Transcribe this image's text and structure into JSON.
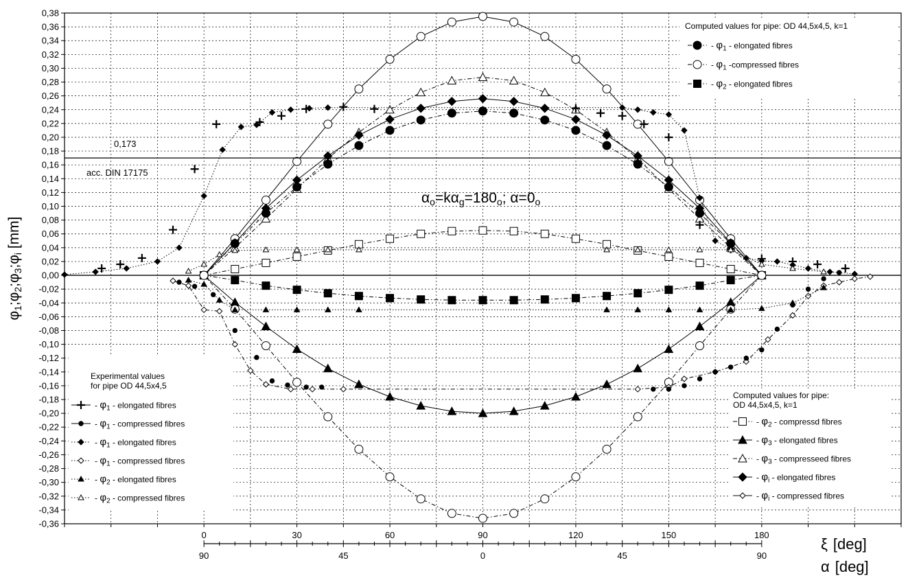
{
  "chart_data": {
    "type": "line",
    "ylabel_parts": [
      "φ",
      "1",
      ";φ",
      "2",
      ";φ",
      "3",
      ";φ",
      "i",
      " [mm]"
    ],
    "ylim": [
      -0.36,
      0.38
    ],
    "yticks": [
      "0,38",
      "0,36",
      "0,34",
      "0,32",
      "0,30",
      "0,28",
      "0,26",
      "0,24",
      "0,22",
      "0,20",
      "0,18",
      "0,16",
      "0,14",
      "0,12",
      "0,10",
      "0,08",
      "0,06",
      "0,04",
      "0,02",
      "0,00",
      "-0,02",
      "-0,04",
      "-0,06",
      "-0,08",
      "-0,10",
      "-0,12",
      "-0,14",
      "-0,16",
      "-0,18",
      "-0,20",
      "-0,22",
      "-0,24",
      "-0,26",
      "-0,28",
      "-0,30",
      "-0,32",
      "-0,34",
      "-0,36"
    ],
    "xlim": [
      -45,
      225
    ],
    "xi_axis": {
      "label_symbol": "ξ",
      "label_unit": "[deg]",
      "ticks": [
        0,
        30,
        60,
        90,
        120,
        150,
        180
      ]
    },
    "alpha_axis": {
      "label_symbol": "α",
      "label_unit": "[deg]",
      "ticks": [
        {
          "xi": 0,
          "label": "90"
        },
        {
          "xi": 45,
          "label": "45"
        },
        {
          "xi": 90,
          "label": "0"
        },
        {
          "xi": 135,
          "label": "45"
        },
        {
          "xi": 180,
          "label": "90"
        }
      ]
    },
    "reference_line": {
      "y": 0.17,
      "label_value": "0,173",
      "label_text": "acc. DIN 17175"
    },
    "annotation_parts": [
      "α",
      "o",
      "=kα",
      "g",
      "=180",
      "o",
      "; α=0",
      "o"
    ],
    "legend_top": {
      "title": "Computed values for pipe: OD 44,5x4,5, k=1",
      "items": [
        {
          "symbol": "φ",
          "sub": "1",
          "text": " - elongated fibres"
        },
        {
          "symbol": "φ",
          "sub": "1",
          "text": " -compressed fibres"
        },
        {
          "symbol": "φ",
          "sub": "2",
          "text": " - elongated fibres"
        }
      ]
    },
    "legend_left": {
      "title_lines": [
        "Experimental values",
        "for pipe OD 44,5x4,5"
      ],
      "items": [
        {
          "symbol": "φ",
          "sub": "1",
          "text": " - elongated fibres"
        },
        {
          "symbol": "φ",
          "sub": "1",
          "text": " - compressed fibres"
        },
        {
          "symbol": "φ",
          "sub": "1",
          "text": " - elongated fibres"
        },
        {
          "symbol": "φ",
          "sub": "1",
          "text": " - compressed fibres"
        },
        {
          "symbol": "φ",
          "sub": "2",
          "text": " - elongated fibres"
        },
        {
          "symbol": "φ",
          "sub": "2",
          "text": " - compressed fibres"
        }
      ]
    },
    "legend_right": {
      "title_lines": [
        "Computed values for pipe:",
        "OD 44,5x4,5, k=1"
      ],
      "items": [
        {
          "symbol": "φ",
          "sub": "2",
          "text": " - compressd fibres"
        },
        {
          "symbol": "φ",
          "sub": "3",
          "text": " - elongated fibres"
        },
        {
          "symbol": "φ",
          "sub": "3",
          "text": " - compresseed fibres"
        },
        {
          "symbol": "φ",
          "sub": "i",
          "text": " - elongated fibres"
        },
        {
          "symbol": "φ",
          "sub": "i",
          "text": " - compressed fibres"
        }
      ]
    },
    "series": [
      {
        "marker": "circle-open",
        "line": "solid",
        "x": [
          0,
          10,
          20,
          30,
          40,
          50,
          60,
          70,
          80,
          90,
          100,
          110,
          120,
          130,
          140,
          150,
          160,
          170,
          180
        ],
        "y": [
          0,
          0.053,
          0.109,
          0.165,
          0.219,
          0.27,
          0.313,
          0.346,
          0.367,
          0.375,
          0.367,
          0.346,
          0.313,
          0.27,
          0.219,
          0.165,
          0.109,
          0.053,
          0
        ]
      },
      {
        "marker": "triangle-open",
        "line": "dashdot",
        "x": [
          0,
          10,
          20,
          30,
          40,
          50,
          60,
          70,
          80,
          90,
          100,
          110,
          120,
          130,
          140,
          150,
          160,
          170,
          180
        ],
        "y": [
          0,
          0.04,
          0.082,
          0.125,
          0.169,
          0.207,
          0.24,
          0.265,
          0.282,
          0.287,
          0.282,
          0.265,
          0.24,
          0.207,
          0.169,
          0.125,
          0.082,
          0.04,
          0
        ]
      },
      {
        "marker": "diamond-filled",
        "line": "solid",
        "x": [
          0,
          10,
          20,
          30,
          40,
          50,
          60,
          70,
          80,
          90,
          100,
          110,
          120,
          130,
          140,
          150,
          160,
          170,
          180
        ],
        "y": [
          0,
          0.047,
          0.097,
          0.138,
          0.173,
          0.203,
          0.226,
          0.242,
          0.252,
          0.256,
          0.252,
          0.242,
          0.226,
          0.203,
          0.173,
          0.138,
          0.097,
          0.047,
          0
        ]
      },
      {
        "marker": "circle-filled",
        "line": "dashdot",
        "x": [
          0,
          10,
          20,
          30,
          40,
          50,
          60,
          70,
          80,
          90,
          100,
          110,
          120,
          130,
          140,
          150,
          160,
          170,
          180
        ],
        "y": [
          0,
          0.046,
          0.09,
          0.128,
          0.161,
          0.188,
          0.21,
          0.225,
          0.235,
          0.238,
          0.235,
          0.225,
          0.21,
          0.188,
          0.161,
          0.128,
          0.09,
          0.046,
          0
        ]
      },
      {
        "marker": "square-open",
        "line": "dashdot",
        "x": [
          0,
          10,
          20,
          30,
          40,
          50,
          60,
          70,
          80,
          90,
          100,
          110,
          120,
          130,
          140,
          150,
          160,
          170,
          180
        ],
        "y": [
          0,
          0.009,
          0.018,
          0.027,
          0.036,
          0.045,
          0.053,
          0.06,
          0.064,
          0.065,
          0.064,
          0.06,
          0.053,
          0.045,
          0.036,
          0.027,
          0.018,
          0.009,
          0
        ]
      },
      {
        "marker": "square-filled",
        "line": "dashdot",
        "x": [
          0,
          10,
          20,
          30,
          40,
          50,
          60,
          70,
          80,
          90,
          100,
          110,
          120,
          130,
          140,
          150,
          160,
          170,
          180
        ],
        "y": [
          0,
          -0.007,
          -0.015,
          -0.021,
          -0.026,
          -0.03,
          -0.033,
          -0.035,
          -0.036,
          -0.036,
          -0.036,
          -0.035,
          -0.033,
          -0.03,
          -0.026,
          -0.021,
          -0.015,
          -0.007,
          0
        ]
      },
      {
        "marker": "triangle-filled",
        "line": "solid",
        "x": [
          0,
          10,
          20,
          30,
          40,
          50,
          60,
          70,
          80,
          90,
          100,
          110,
          120,
          130,
          140,
          150,
          160,
          170,
          180
        ],
        "y": [
          0,
          -0.039,
          -0.074,
          -0.107,
          -0.135,
          -0.158,
          -0.176,
          -0.189,
          -0.197,
          -0.2,
          -0.197,
          -0.189,
          -0.176,
          -0.158,
          -0.135,
          -0.107,
          -0.074,
          -0.039,
          0
        ]
      },
      {
        "marker": "circle-open",
        "line": "dashdot",
        "x": [
          0,
          10,
          20,
          30,
          40,
          50,
          60,
          70,
          80,
          90,
          100,
          110,
          120,
          130,
          140,
          150,
          160,
          170,
          180
        ],
        "y": [
          0,
          -0.049,
          -0.102,
          -0.155,
          -0.205,
          -0.252,
          -0.292,
          -0.324,
          -0.345,
          -0.352,
          -0.345,
          -0.324,
          -0.292,
          -0.252,
          -0.205,
          -0.155,
          -0.102,
          -0.049,
          0
        ]
      },
      {
        "marker": "plus",
        "line": "none",
        "x": [
          -33,
          -27,
          -20,
          -10,
          -3,
          4,
          18,
          25,
          33,
          45,
          55,
          120,
          128,
          135,
          142,
          150,
          160
        ],
        "y": [
          0.01,
          0.016,
          0.025,
          0.066,
          0.154,
          0.219,
          0.222,
          0.231,
          0.241,
          0.244,
          0.241,
          0.242,
          0.235,
          0.231,
          0.219,
          0.2,
          0.073
        ],
        "x2": [
          170,
          180,
          190,
          198,
          207
        ],
        "y2": [
          0.038,
          0.024,
          0.02,
          0.016,
          0.01
        ]
      },
      {
        "marker": "diamond-small-filled",
        "line": "dotted",
        "x": [
          -45,
          -35,
          -25,
          -15,
          -8,
          0,
          6,
          12,
          17,
          22,
          28,
          34,
          40,
          135,
          140,
          145,
          150,
          155,
          160,
          165,
          170,
          175,
          180,
          185,
          190,
          195,
          202,
          210
        ],
        "y": [
          0.001,
          0.005,
          0.01,
          0.02,
          0.04,
          0.115,
          0.182,
          0.215,
          0.218,
          0.236,
          0.24,
          0.242,
          0.243,
          0.243,
          0.24,
          0.236,
          0.233,
          0.21,
          0.112,
          0.05,
          0.038,
          0.025,
          0.021,
          0.02,
          0.015,
          0.01,
          0.005,
          0.002
        ]
      },
      {
        "marker": "diamond-small-open",
        "line": "dashdot",
        "x": [
          -10,
          -5,
          0,
          5,
          10,
          15,
          20,
          28,
          35,
          45,
          140,
          150,
          155,
          165,
          175,
          182,
          190,
          195,
          200,
          205,
          210,
          215
        ],
        "y": [
          -0.008,
          -0.015,
          -0.05,
          -0.052,
          -0.1,
          -0.138,
          -0.158,
          -0.165,
          -0.165,
          -0.165,
          -0.165,
          -0.162,
          -0.15,
          -0.14,
          -0.125,
          -0.093,
          -0.058,
          -0.03,
          -0.015,
          -0.01,
          -0.005,
          -0.002
        ]
      },
      {
        "marker": "circle-small-filled",
        "line": "none",
        "x": [
          -8,
          -3,
          3,
          10,
          17,
          22,
          27,
          33,
          38,
          145,
          150,
          155,
          160,
          165,
          170,
          175,
          180,
          185,
          190,
          195,
          200,
          205
        ],
        "y": [
          -0.01,
          -0.016,
          -0.028,
          -0.08,
          -0.119,
          -0.153,
          -0.159,
          -0.162,
          -0.162,
          -0.165,
          -0.165,
          -0.16,
          -0.15,
          -0.14,
          -0.133,
          -0.12,
          -0.108,
          -0.078,
          -0.043,
          -0.02,
          -0.005,
          0.004
        ]
      },
      {
        "marker": "triangle-small-filled",
        "line": "dotted",
        "x": [
          -5,
          0,
          5,
          10,
          20,
          30,
          40,
          50,
          130,
          140,
          150,
          160,
          170,
          180,
          190,
          200
        ],
        "y": [
          -0.007,
          -0.013,
          -0.036,
          -0.05,
          -0.05,
          -0.05,
          -0.05,
          -0.05,
          -0.05,
          -0.05,
          -0.05,
          -0.05,
          -0.05,
          -0.048,
          -0.04,
          -0.018
        ]
      },
      {
        "marker": "triangle-small-open",
        "line": "dotted",
        "x": [
          -5,
          0,
          5,
          10,
          20,
          30,
          40,
          50,
          130,
          140,
          150,
          160,
          170,
          180,
          190,
          200
        ],
        "y": [
          0.006,
          0.016,
          0.03,
          0.036,
          0.037,
          0.037,
          0.037,
          0.037,
          0.037,
          0.037,
          0.037,
          0.037,
          0.037,
          0.016,
          0.01,
          0.005
        ]
      }
    ]
  }
}
